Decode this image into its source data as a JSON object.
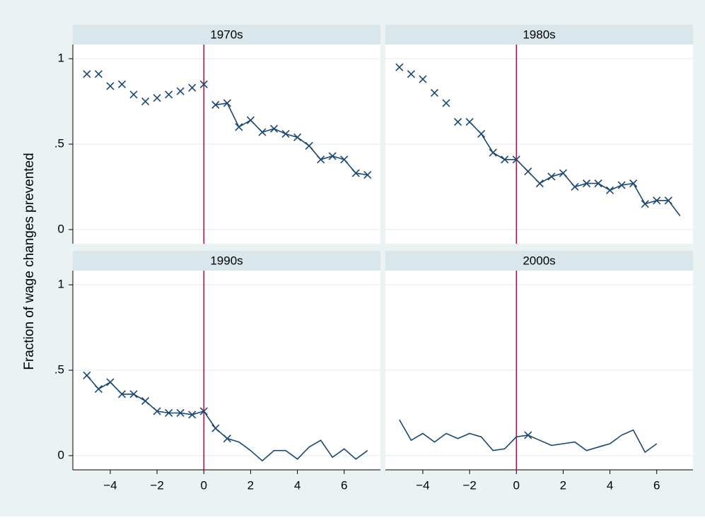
{
  "chart_data": {
    "type": "line",
    "ylabel": "Fraction of wage changes prevented",
    "x": [
      -5,
      -4.5,
      -4,
      -3.5,
      -3,
      -2.5,
      -2,
      -1.5,
      -1,
      -0.5,
      0,
      0.5,
      1,
      1.5,
      2,
      2.5,
      3,
      3.5,
      4,
      4.5,
      5,
      5.5,
      6,
      6.5,
      7
    ],
    "xlim": [
      -5.6,
      7.55
    ],
    "ylim": [
      -0.083,
      1.083
    ],
    "xticks": [
      {
        "value": -4,
        "label": "−4"
      },
      {
        "value": -2,
        "label": "−2"
      },
      0,
      2,
      4,
      6
    ],
    "yticks": [
      0,
      {
        "value": 0.5,
        "label": ".5"
      },
      1
    ],
    "grid": true,
    "color": "#1a476f",
    "xline": 0,
    "xline_color": "#b5123b",
    "panels": [
      {
        "title": "1970s",
        "values": [
          null,
          null,
          null,
          null,
          null,
          null,
          null,
          null,
          null,
          null,
          null,
          0.73,
          0.74,
          0.6,
          0.64,
          0.57,
          0.59,
          0.56,
          0.54,
          0.49,
          0.41,
          0.43,
          0.41,
          0.33,
          0.32
        ],
        "markers": [
          0.91,
          0.91,
          0.84,
          0.85,
          0.79,
          0.75,
          0.77,
          0.79,
          0.81,
          0.83,
          0.85,
          0.73,
          0.74,
          0.6,
          0.64,
          0.57,
          0.59,
          0.56,
          0.54,
          0.49,
          0.41,
          0.43,
          0.41,
          0.33,
          0.32
        ]
      },
      {
        "title": "1980s",
        "values": [
          null,
          null,
          null,
          null,
          null,
          null,
          0.63,
          0.56,
          0.45,
          0.41,
          0.41,
          0.34,
          0.27,
          0.31,
          0.33,
          0.25,
          0.27,
          0.27,
          0.23,
          0.26,
          0.27,
          0.15,
          0.17,
          0.17,
          0.08
        ],
        "markers": [
          0.95,
          0.91,
          0.88,
          0.8,
          0.74,
          0.63,
          0.63,
          0.56,
          0.45,
          0.41,
          0.41,
          0.34,
          0.27,
          0.31,
          0.33,
          0.25,
          0.27,
          0.27,
          0.23,
          0.26,
          0.27,
          0.15,
          0.17,
          0.17,
          null
        ]
      },
      {
        "title": "1990s",
        "values": [
          0.47,
          0.39,
          0.43,
          0.36,
          0.36,
          0.32,
          0.26,
          0.25,
          0.25,
          0.24,
          0.26,
          0.16,
          0.1,
          0.08,
          0.03,
          -0.03,
          0.03,
          0.03,
          -0.02,
          0.05,
          0.09,
          -0.01,
          0.04,
          -0.02,
          0.03
        ],
        "markers": [
          0.47,
          0.39,
          0.43,
          0.36,
          0.36,
          0.32,
          0.26,
          0.25,
          0.25,
          0.24,
          0.26,
          0.16,
          0.1,
          null,
          null,
          null,
          null,
          null,
          null,
          null,
          null,
          null,
          null,
          null,
          null
        ]
      },
      {
        "title": "2000s",
        "values": [
          0.21,
          0.09,
          0.13,
          0.08,
          0.13,
          0.1,
          0.13,
          0.11,
          0.03,
          0.04,
          0.11,
          0.12,
          0.09,
          0.06,
          0.07,
          0.08,
          0.03,
          0.05,
          0.07,
          0.12,
          0.15,
          0.02,
          0.07,
          null,
          null
        ],
        "markers": [
          null,
          null,
          null,
          null,
          null,
          null,
          null,
          null,
          null,
          null,
          null,
          0.12,
          null,
          null,
          null,
          null,
          null,
          null,
          null,
          null,
          null,
          null,
          null,
          null,
          null
        ]
      }
    ]
  }
}
